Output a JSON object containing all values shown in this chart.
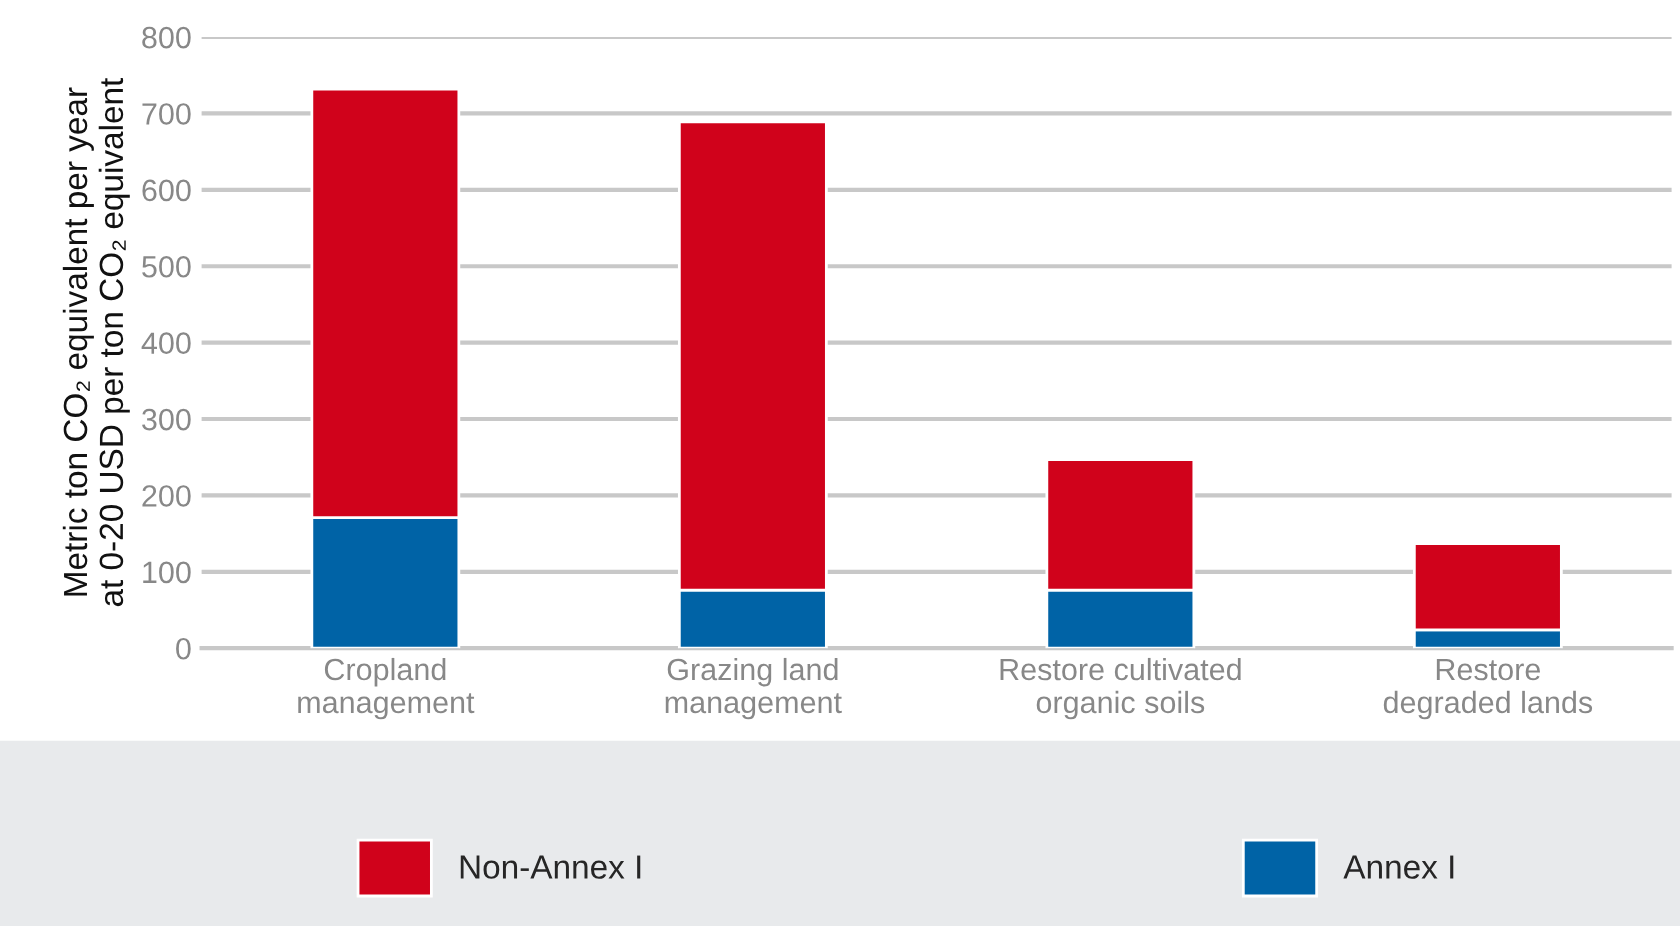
{
  "chart_data": {
    "type": "bar",
    "stacked": true,
    "ylabel": "Metric ton CO₂ equivalent per year\nat 0-20 USD per ton CO₂ equivalent",
    "categories": [
      "Cropland\nmanagement",
      "Grazing land\nmanagement",
      "Restore cultivated\norganic soils",
      "Restore\ndegraded lands"
    ],
    "series": [
      {
        "name": "Annex I",
        "color": "#0063a6",
        "values": [
          171,
          76,
          76,
          24
        ]
      },
      {
        "name": "Non-Annex I",
        "color": "#d0021b",
        "values": [
          561,
          613,
          171,
          113
        ]
      }
    ],
    "ylim": [
      0,
      800
    ],
    "yticks": [
      0,
      100,
      200,
      300,
      400,
      500,
      600,
      700,
      800
    ],
    "grid": "y",
    "legend": "bottom"
  }
}
